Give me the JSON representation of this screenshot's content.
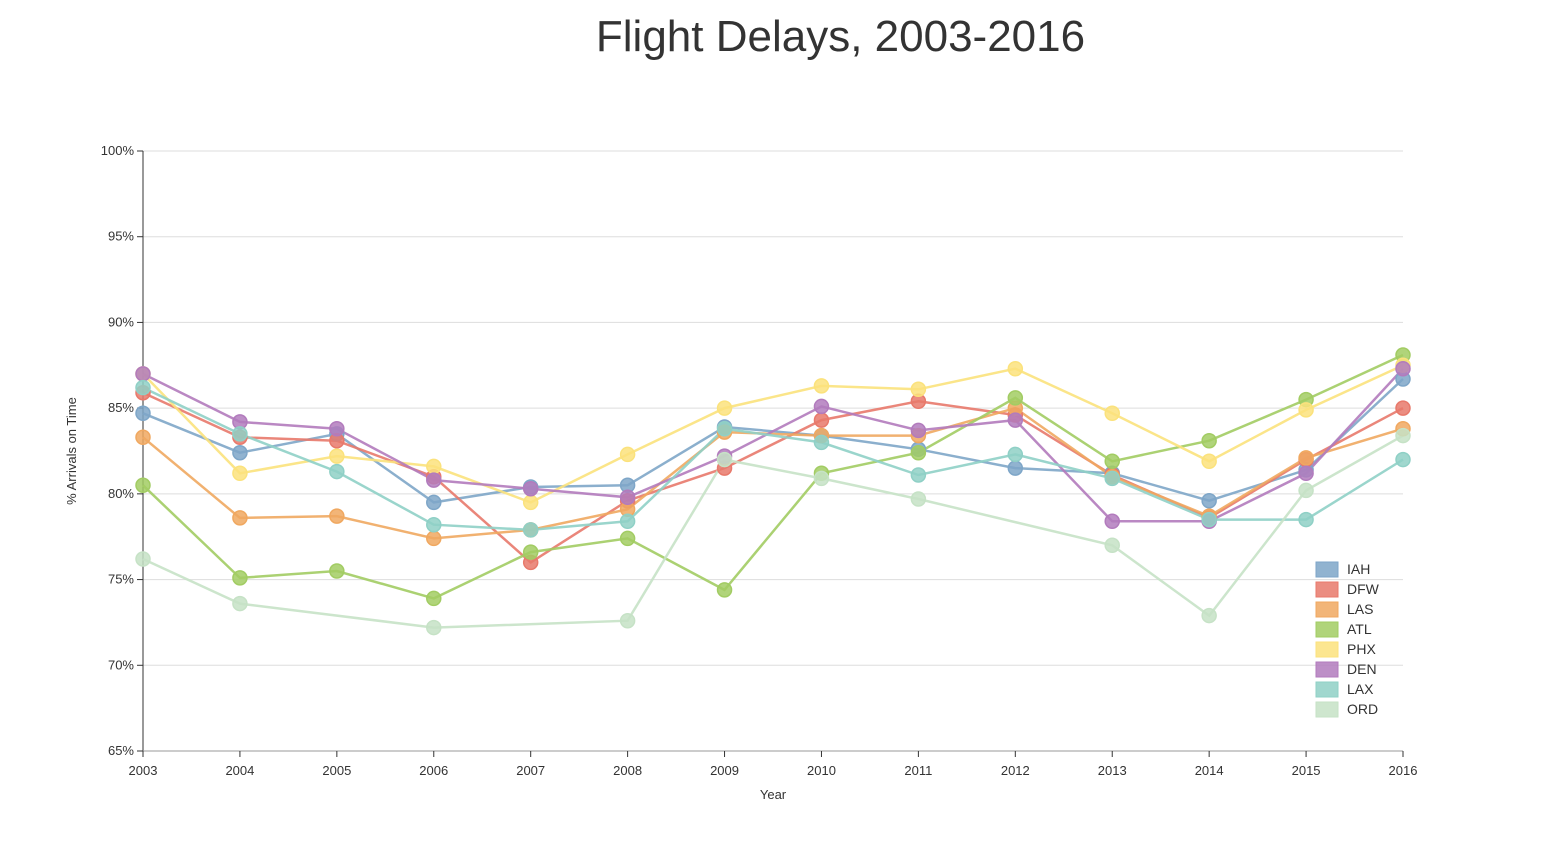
{
  "chart_data": {
    "type": "line",
    "title": "Flight Delays, 2003-2016",
    "xlabel": "Year",
    "ylabel": "% Arrivals on Time",
    "x": [
      2003,
      2004,
      2005,
      2006,
      2007,
      2008,
      2009,
      2010,
      2011,
      2012,
      2013,
      2014,
      2015,
      2016
    ],
    "x_tick_labels": [
      "2003",
      "2004",
      "2005",
      "2006",
      "2007",
      "2008",
      "2009",
      "2010",
      "2011",
      "2012",
      "2013",
      "2014",
      "2015",
      "2016"
    ],
    "ylim": [
      65,
      100
    ],
    "y_ticks": [
      65,
      70,
      75,
      80,
      85,
      90,
      95,
      100
    ],
    "y_tick_labels": [
      "65%",
      "70%",
      "75%",
      "80%",
      "85%",
      "90%",
      "95%",
      "100%"
    ],
    "grid": true,
    "legend_position": "bottom-right",
    "series": [
      {
        "name": "IAH",
        "color": "#7ea6c8",
        "values": [
          84.7,
          82.4,
          83.5,
          79.5,
          80.4,
          80.5,
          83.9,
          83.4,
          82.6,
          81.5,
          81.2,
          79.6,
          81.4,
          86.7
        ]
      },
      {
        "name": "DFW",
        "color": "#e8796b",
        "values": [
          85.9,
          83.3,
          83.1,
          81.0,
          76.0,
          79.6,
          81.5,
          84.3,
          85.4,
          84.6,
          81.1,
          78.6,
          82.0,
          85.0
        ]
      },
      {
        "name": "LAS",
        "color": "#f0a860",
        "values": [
          83.3,
          78.6,
          78.7,
          77.4,
          77.9,
          79.1,
          83.6,
          83.4,
          83.4,
          85.0,
          81.0,
          78.7,
          82.1,
          83.8
        ]
      },
      {
        "name": "ATL",
        "color": "#a2cc63",
        "values": [
          80.5,
          75.1,
          75.5,
          73.9,
          76.6,
          77.4,
          74.4,
          81.2,
          82.4,
          85.6,
          81.9,
          83.1,
          85.5,
          88.1
        ]
      },
      {
        "name": "PHX",
        "color": "#fbe27c",
        "values": [
          87.0,
          81.2,
          82.2,
          81.6,
          79.5,
          82.3,
          85.0,
          86.3,
          86.1,
          87.3,
          84.7,
          81.9,
          84.9,
          87.5
        ]
      },
      {
        "name": "DEN",
        "color": "#b27bbd",
        "values": [
          87.0,
          84.2,
          83.8,
          80.8,
          80.3,
          79.8,
          82.2,
          85.1,
          83.7,
          84.3,
          78.4,
          78.4,
          81.2,
          87.3
        ]
      },
      {
        "name": "LAX",
        "color": "#8fd0c6",
        "values": [
          86.2,
          83.5,
          81.3,
          78.2,
          77.9,
          78.4,
          83.8,
          83.0,
          81.1,
          82.3,
          80.9,
          78.5,
          78.5,
          82.0
        ]
      },
      {
        "name": "ORD",
        "color": "#c6e2c6",
        "values": [
          76.2,
          73.6,
          null,
          72.2,
          null,
          72.6,
          82.0,
          80.9,
          79.7,
          null,
          77.0,
          72.9,
          80.2,
          83.4
        ]
      }
    ]
  }
}
